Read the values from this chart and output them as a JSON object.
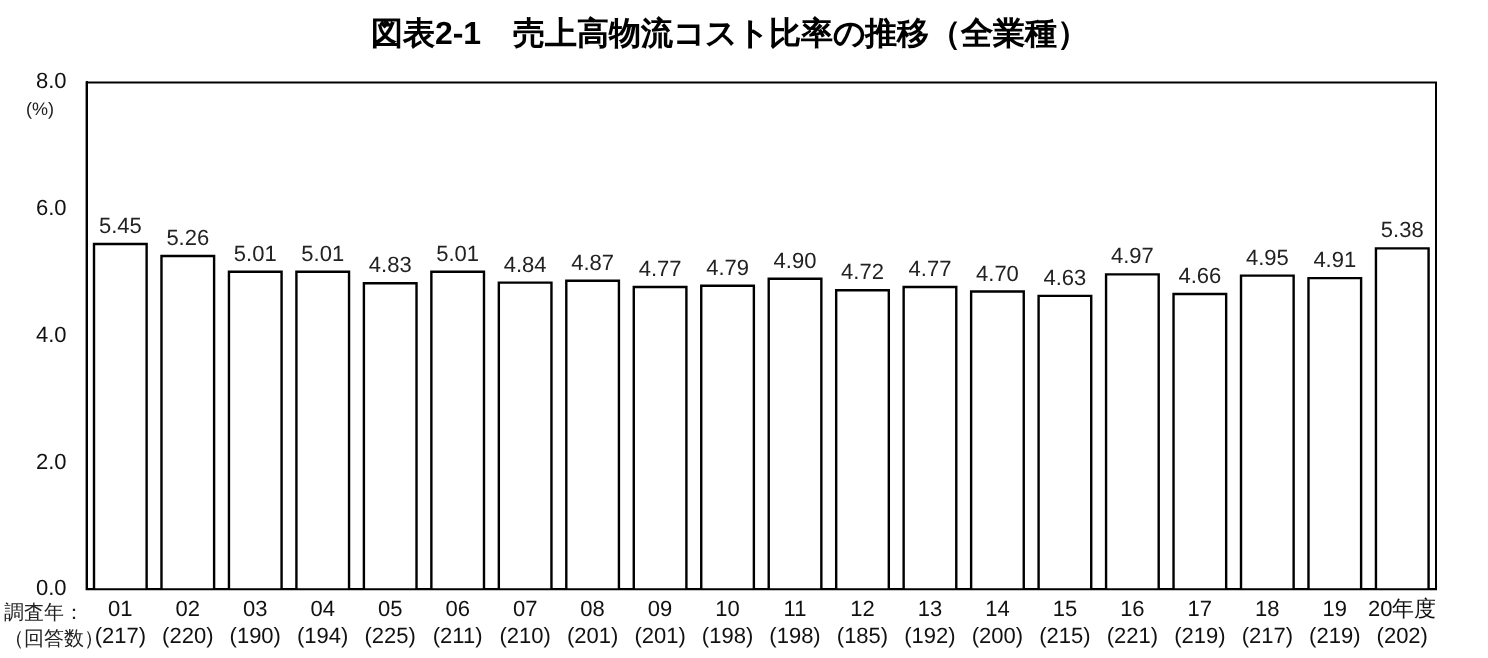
{
  "chart_data": {
    "type": "bar",
    "title": "図表2-1　売上高物流コスト比率の推移（全業種）",
    "ylabel": "(%)",
    "categories": [
      "01\n(217)",
      "02\n(220)",
      "03\n(190)",
      "04\n(194)",
      "05\n(225)",
      "06\n(211)",
      "07\n(210)",
      "08\n(201)",
      "09\n(201)",
      "10\n(198)",
      "11\n(198)",
      "12\n(185)",
      "13\n(192)",
      "14\n(200)",
      "15\n(215)",
      "16\n(221)",
      "17\n(219)",
      "18\n(217)",
      "19\n(219)",
      "20年度\n(202)"
    ],
    "values": [
      5.45,
      5.26,
      5.01,
      5.01,
      4.83,
      5.01,
      4.84,
      4.87,
      4.77,
      4.79,
      4.9,
      4.72,
      4.77,
      4.7,
      4.63,
      4.97,
      4.66,
      4.95,
      4.91,
      5.38
    ],
    "value_labels": [
      "5.45",
      "5.26",
      "5.01",
      "5.01",
      "4.83",
      "5.01",
      "4.84",
      "4.87",
      "4.77",
      "4.79",
      "4.90",
      "4.72",
      "4.77",
      "4.70",
      "4.63",
      "4.97",
      "4.66",
      "4.95",
      "4.91",
      "5.38"
    ],
    "color": "#ffffff",
    "ylim": [
      0,
      8
    ],
    "yticks": [
      {
        "value": 0,
        "label": "0.0"
      },
      {
        "value": 2,
        "label": "2.0"
      },
      {
        "value": 4,
        "label": "4.0"
      },
      {
        "value": 6,
        "label": "6.0"
      },
      {
        "value": 8,
        "label": "8.0"
      }
    ],
    "annotations": [
      "調査年：",
      "（回答数）"
    ],
    "grid": false,
    "legend": false
  }
}
